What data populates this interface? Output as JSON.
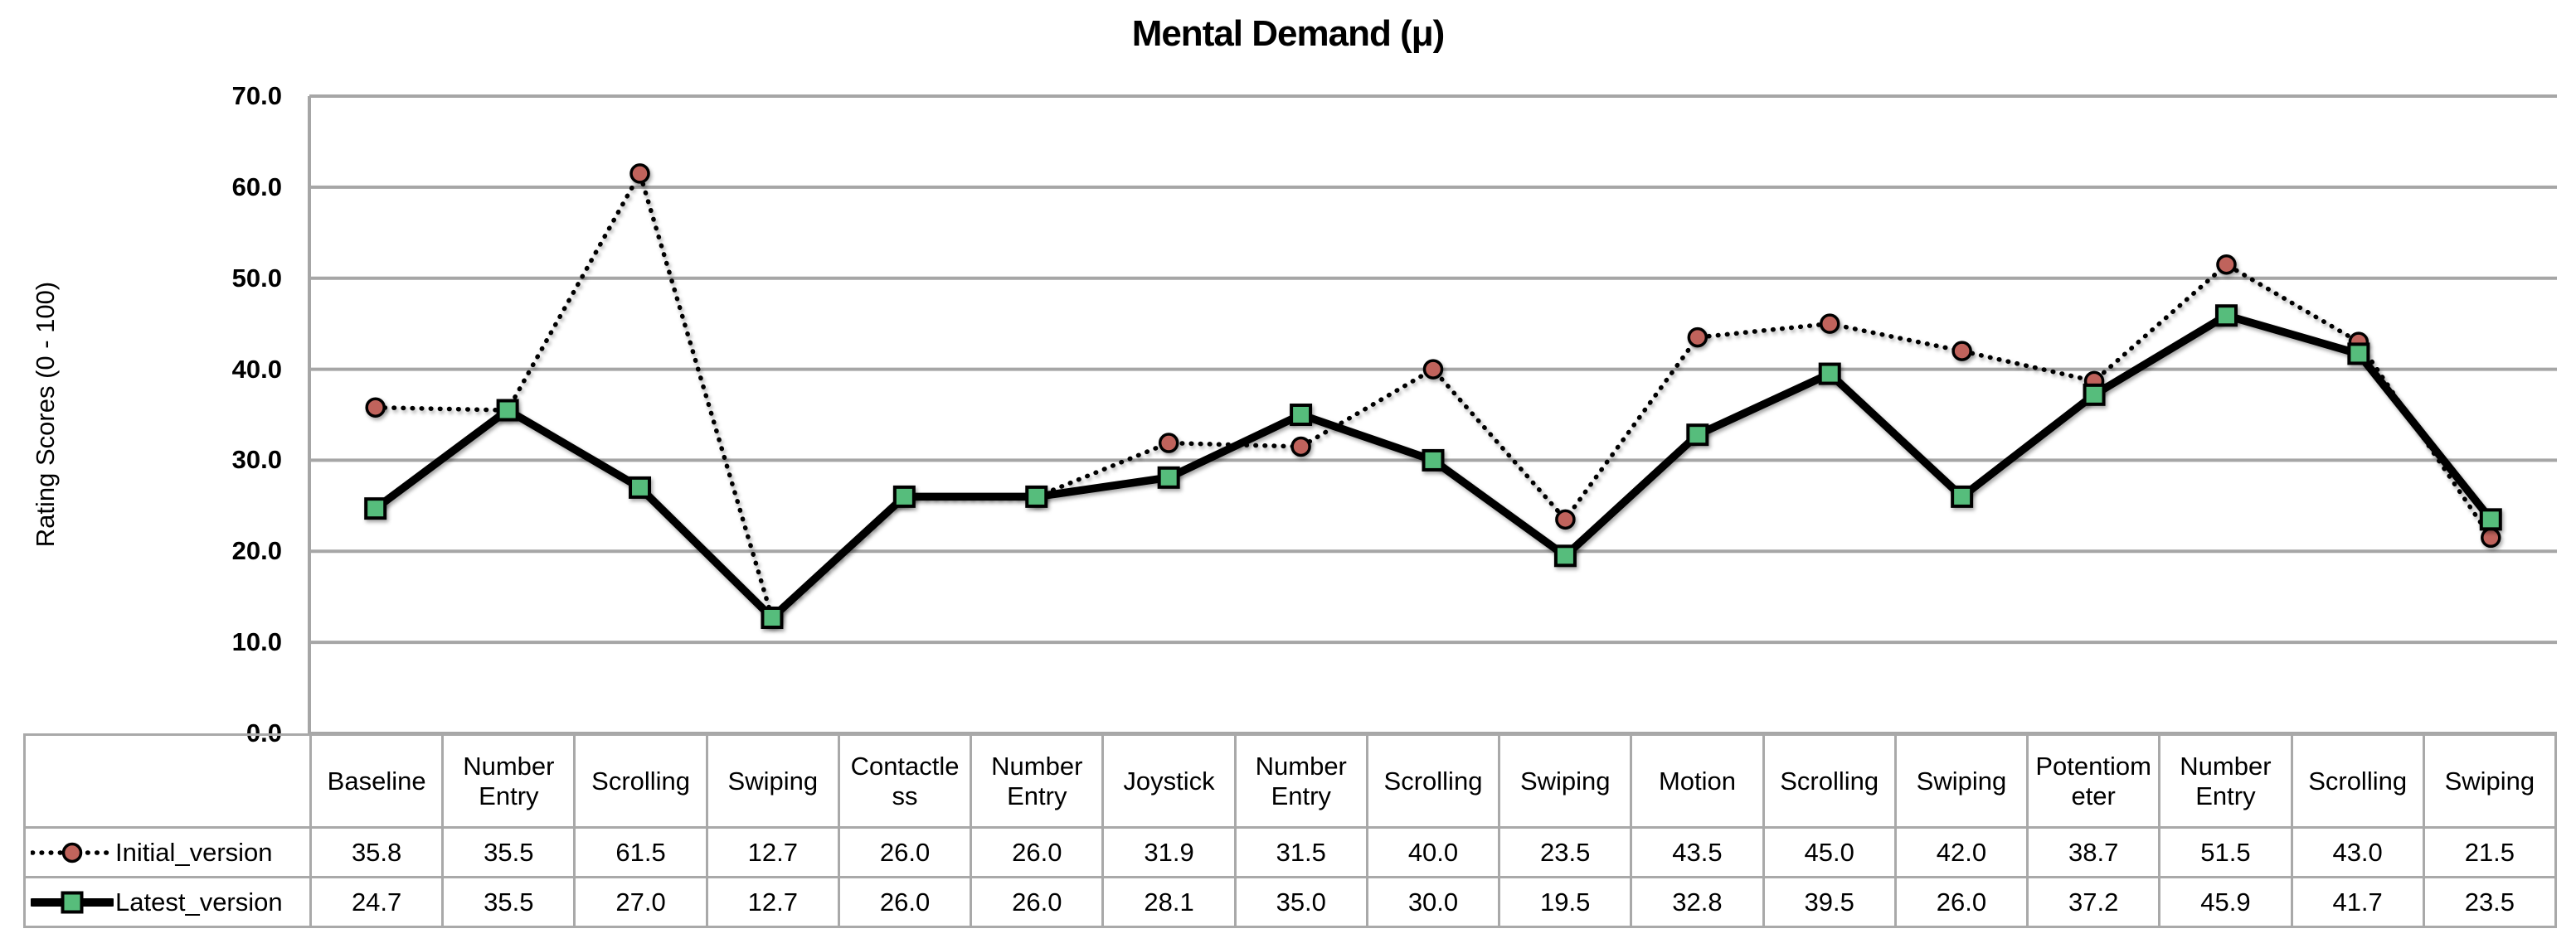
{
  "chart_data": {
    "type": "line",
    "title": "Mental Demand (μ)",
    "ylabel": "Rating Scores (0 - 100)",
    "ylim": [
      0,
      70
    ],
    "y_ticks": [
      70,
      60,
      50,
      40,
      30,
      20,
      10,
      0
    ],
    "grid": "horizontal",
    "legend_position": "table-left",
    "categories": [
      "Baseline",
      "Number Entry",
      "Scrolling",
      "Swiping",
      "Contactless",
      "Number Entry",
      "Joystick",
      "Number Entry",
      "Scrolling",
      "Swiping",
      "Motion",
      "Scrolling",
      "Swiping",
      "Potentiometer",
      "Number Entry",
      "Scrolling",
      "Swiping"
    ],
    "series": [
      {
        "name": "Initial_version",
        "line_style": "dotted",
        "line_color": "#000000",
        "marker": "circle",
        "marker_fill": "#C0645C",
        "marker_stroke": "#000000",
        "values": [
          35.8,
          35.5,
          61.5,
          12.7,
          26.0,
          26.0,
          31.9,
          31.5,
          40.0,
          23.5,
          43.5,
          45.0,
          42.0,
          38.7,
          51.5,
          43.0,
          21.5
        ]
      },
      {
        "name": "Latest_version",
        "line_style": "solid",
        "line_color": "#000000",
        "marker": "square",
        "marker_fill": "#57BD7B",
        "marker_stroke": "#000000",
        "values": [
          24.7,
          35.5,
          27.0,
          12.7,
          26.0,
          26.0,
          28.1,
          35.0,
          30.0,
          19.5,
          32.8,
          39.5,
          26.0,
          37.2,
          45.9,
          41.7,
          23.5
        ]
      }
    ]
  },
  "colors": {
    "gridline": "#A6A6A6",
    "table_border": "#A9A9A9",
    "text": "#000000",
    "background": "#FFFFFF"
  }
}
